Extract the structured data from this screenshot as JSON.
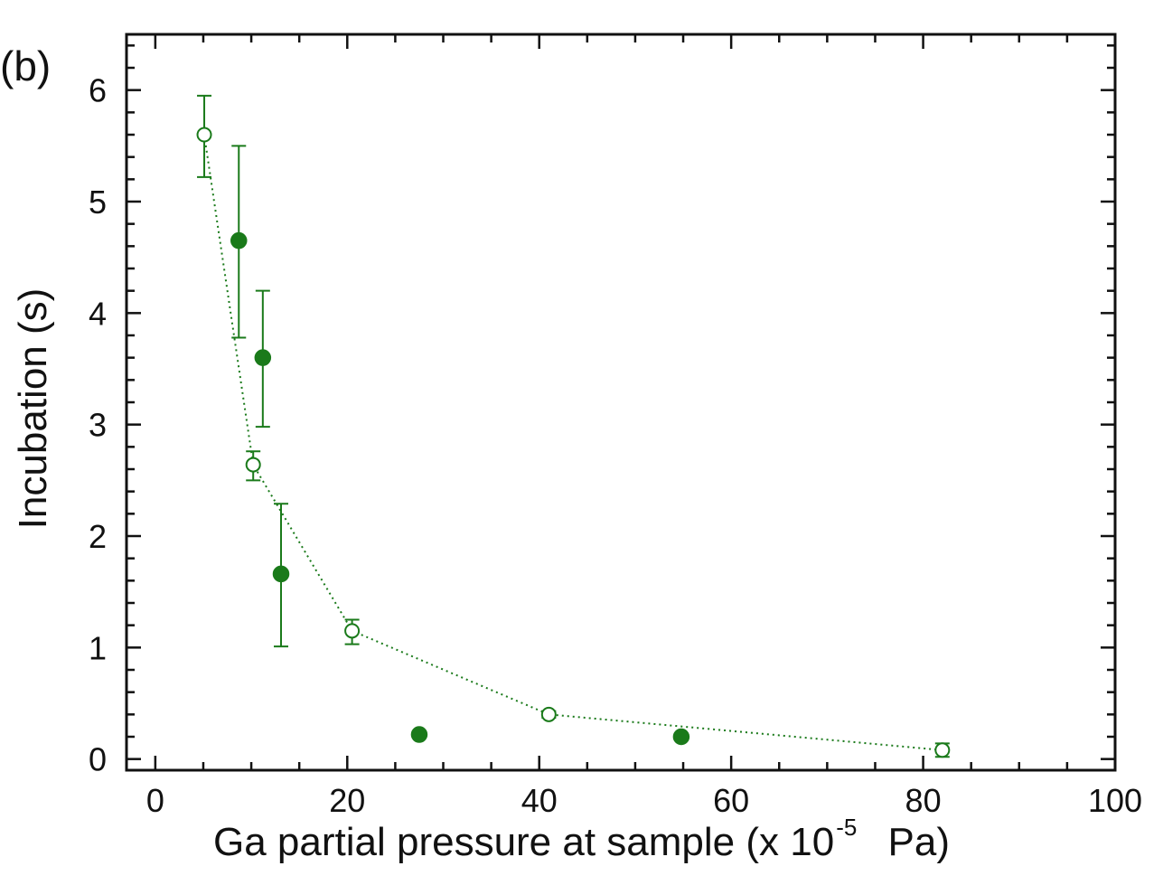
{
  "panel_label": "(b)",
  "chart_data": {
    "type": "scatter",
    "xlabel_main": "Ga partial pressure at sample (x 10",
    "xlabel_exponent": "-5",
    "xlabel_unit": " Pa)",
    "ylabel": "Incubation (s)",
    "xlim": [
      -3,
      100
    ],
    "ylim": [
      -0.1,
      6.5
    ],
    "x_ticks": [
      0,
      20,
      40,
      60,
      80,
      100
    ],
    "x_tick_labels": [
      "0",
      "20",
      "40",
      "60",
      "80",
      "100"
    ],
    "y_ticks": [
      0,
      1,
      2,
      3,
      4,
      5,
      6
    ],
    "y_tick_labels": [
      "0",
      "1",
      "2",
      "3",
      "4",
      "5",
      "6"
    ],
    "grid": false,
    "colors": {
      "series": "#1a7a1a",
      "axes": "#111111"
    },
    "series": [
      {
        "marker": "open-circle",
        "line": "dotted",
        "points": [
          {
            "x": 5.1,
            "y": 5.6,
            "err_low": 0.38,
            "err_high": 0.35
          },
          {
            "x": 10.2,
            "y": 2.64,
            "err_low": 0.14,
            "err_high": 0.12
          },
          {
            "x": 20.5,
            "y": 1.15,
            "err_low": 0.12,
            "err_high": 0.1
          },
          {
            "x": 41.0,
            "y": 0.4,
            "err_low": 0.03,
            "err_high": 0.03
          },
          {
            "x": 82.0,
            "y": 0.08,
            "err_low": 0.06,
            "err_high": 0.06
          }
        ]
      },
      {
        "marker": "filled-circle",
        "line": "none",
        "points": [
          {
            "x": 8.7,
            "y": 4.65,
            "err_low": 0.87,
            "err_high": 0.85
          },
          {
            "x": 11.2,
            "y": 3.6,
            "err_low": 0.62,
            "err_high": 0.6
          },
          {
            "x": 13.1,
            "y": 1.66,
            "err_low": 0.65,
            "err_high": 0.63
          },
          {
            "x": 27.5,
            "y": 0.22,
            "err_low": 0,
            "err_high": 0
          },
          {
            "x": 54.8,
            "y": 0.2,
            "err_low": 0,
            "err_high": 0
          }
        ]
      }
    ]
  }
}
